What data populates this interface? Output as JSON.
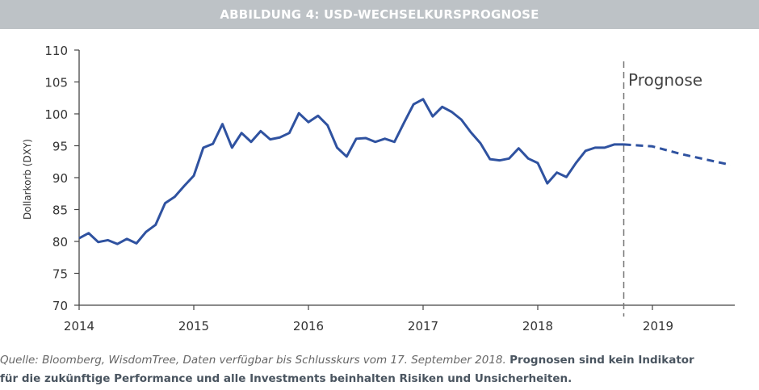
{
  "header": {
    "title": "ABBILDUNG 4: USD-WECHSELKURSPROGNOSE"
  },
  "chart_data": {
    "type": "line",
    "title": "ABBILDUNG 4: USD-WECHSELKURSPROGNOSE",
    "ylabel": "Dollarkorb (DXY)",
    "xlabel": "",
    "ylim": [
      70,
      110
    ],
    "yticks": [
      70,
      75,
      80,
      85,
      90,
      95,
      100,
      105,
      110
    ],
    "xlim": [
      2014,
      2019.7
    ],
    "xticks": [
      2014,
      2015,
      2016,
      2017,
      2018,
      2019
    ],
    "grid": false,
    "line_color": "#2f52a0",
    "annotation": {
      "label": "Prognose",
      "x": 2018.75
    },
    "series": [
      {
        "style": "solid",
        "start": 2014.0,
        "step_years": 0.08333,
        "values": [
          80.5,
          81.3,
          79.9,
          80.2,
          79.6,
          80.4,
          79.7,
          81.5,
          82.6,
          86.0,
          87.0,
          88.7,
          90.3,
          94.7,
          95.3,
          98.4,
          94.7,
          97.0,
          95.6,
          97.3,
          96.0,
          96.3,
          97.0,
          100.1,
          98.7,
          99.7,
          98.2,
          94.7,
          93.3,
          96.1,
          96.2,
          95.6,
          96.1,
          95.6,
          98.6,
          101.5,
          102.3,
          99.6,
          101.1,
          100.3,
          99.1,
          97.1,
          95.4,
          92.9,
          92.7,
          93.0,
          94.6,
          93.0,
          92.3,
          89.1,
          90.8,
          90.1,
          92.3,
          94.2,
          94.7,
          94.7,
          95.2,
          95.2
        ]
      },
      {
        "style": "dashed",
        "x": [
          2018.75,
          2019.0,
          2019.25,
          2019.68
        ],
        "values": [
          95.2,
          94.9,
          93.7,
          92.0
        ]
      }
    ]
  },
  "footer": {
    "source": "Quelle: Bloomberg, WisdomTree, Daten verfügbar bis Schlusskurs vom 17. September 2018.",
    "disclaimer_part1": "Prognosen sind kein Indikator",
    "disclaimer_part2": "für die zukünftige Performance und alle Investments beinhalten Risiken und Unsicherheiten."
  }
}
